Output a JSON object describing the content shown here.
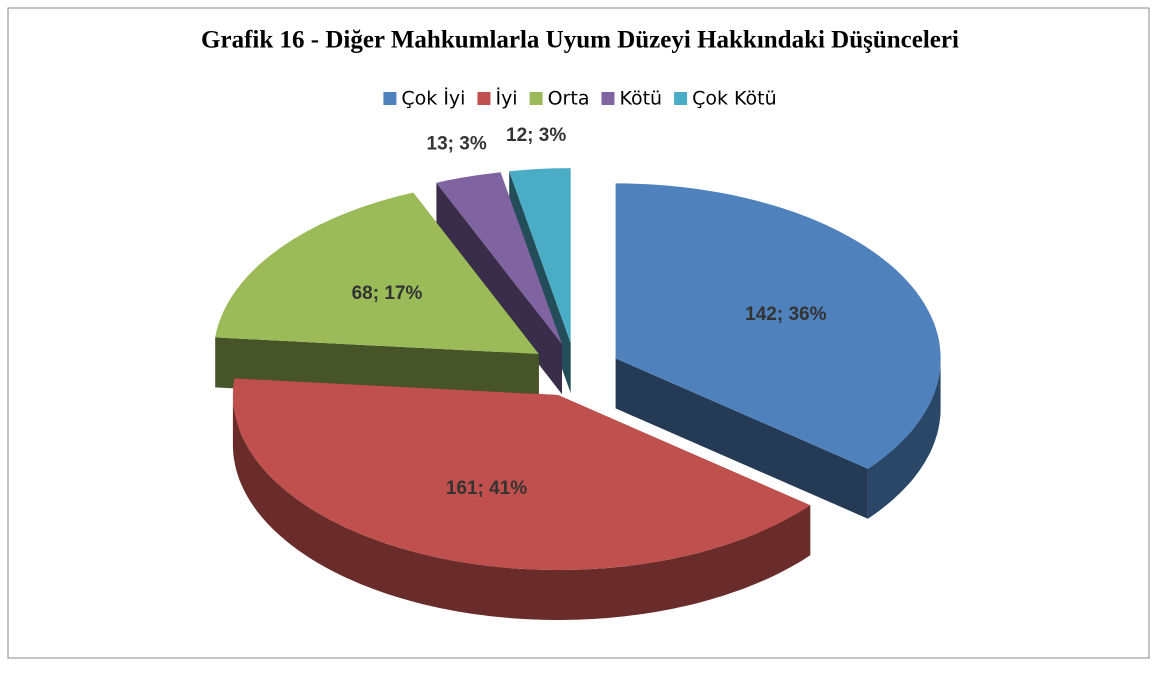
{
  "chart_data": {
    "type": "pie",
    "title": "Grafik 16 - Diğer Mahkumlarla Uyum Düzeyi Hakkındaki Düşünceleri",
    "categories": [
      "Çok İyi",
      "İyi",
      "Orta",
      "Kötü",
      "Çok Kötü"
    ],
    "values": [
      142,
      161,
      68,
      13,
      12
    ],
    "value_labels": [
      "142; 36%",
      "161; 41%",
      "68; 17%",
      "13; 3%",
      "12; 3%"
    ],
    "colors": [
      "#4f81bd",
      "#c0504d",
      "#9bbb59",
      "#8064a2",
      "#4bacc6"
    ],
    "legend": "top"
  }
}
